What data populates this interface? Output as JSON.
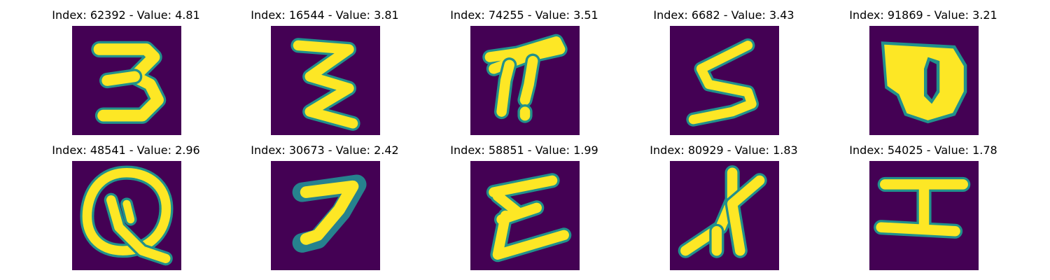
{
  "grid": {
    "rows": 2,
    "cols": 5,
    "colors": {
      "background": "#440154",
      "stroke": "#fde725",
      "edge": "#21918c"
    },
    "items": [
      {
        "title": "Index: 62392 - Value: 4.81",
        "glyph": "handwritten-3"
      },
      {
        "title": "Index: 16544 - Value: 3.81",
        "glyph": "handwritten-sigma"
      },
      {
        "title": "Index: 74255 - Value: 3.51",
        "glyph": "handwritten-pi"
      },
      {
        "title": "Index: 6682 - Value: 3.43",
        "glyph": "handwritten-s"
      },
      {
        "title": "Index: 91869 - Value: 3.21",
        "glyph": "handwritten-blob"
      },
      {
        "title": "Index: 48541 - Value: 2.96",
        "glyph": "handwritten-q"
      },
      {
        "title": "Index: 30673 - Value: 2.42",
        "glyph": "handwritten-7"
      },
      {
        "title": "Index: 58851 - Value: 1.99",
        "glyph": "handwritten-sigma"
      },
      {
        "title": "Index: 80929 - Value: 1.83",
        "glyph": "handwritten-x"
      },
      {
        "title": "Index: 54025 - Value: 1.78",
        "glyph": "handwritten-i"
      }
    ]
  }
}
